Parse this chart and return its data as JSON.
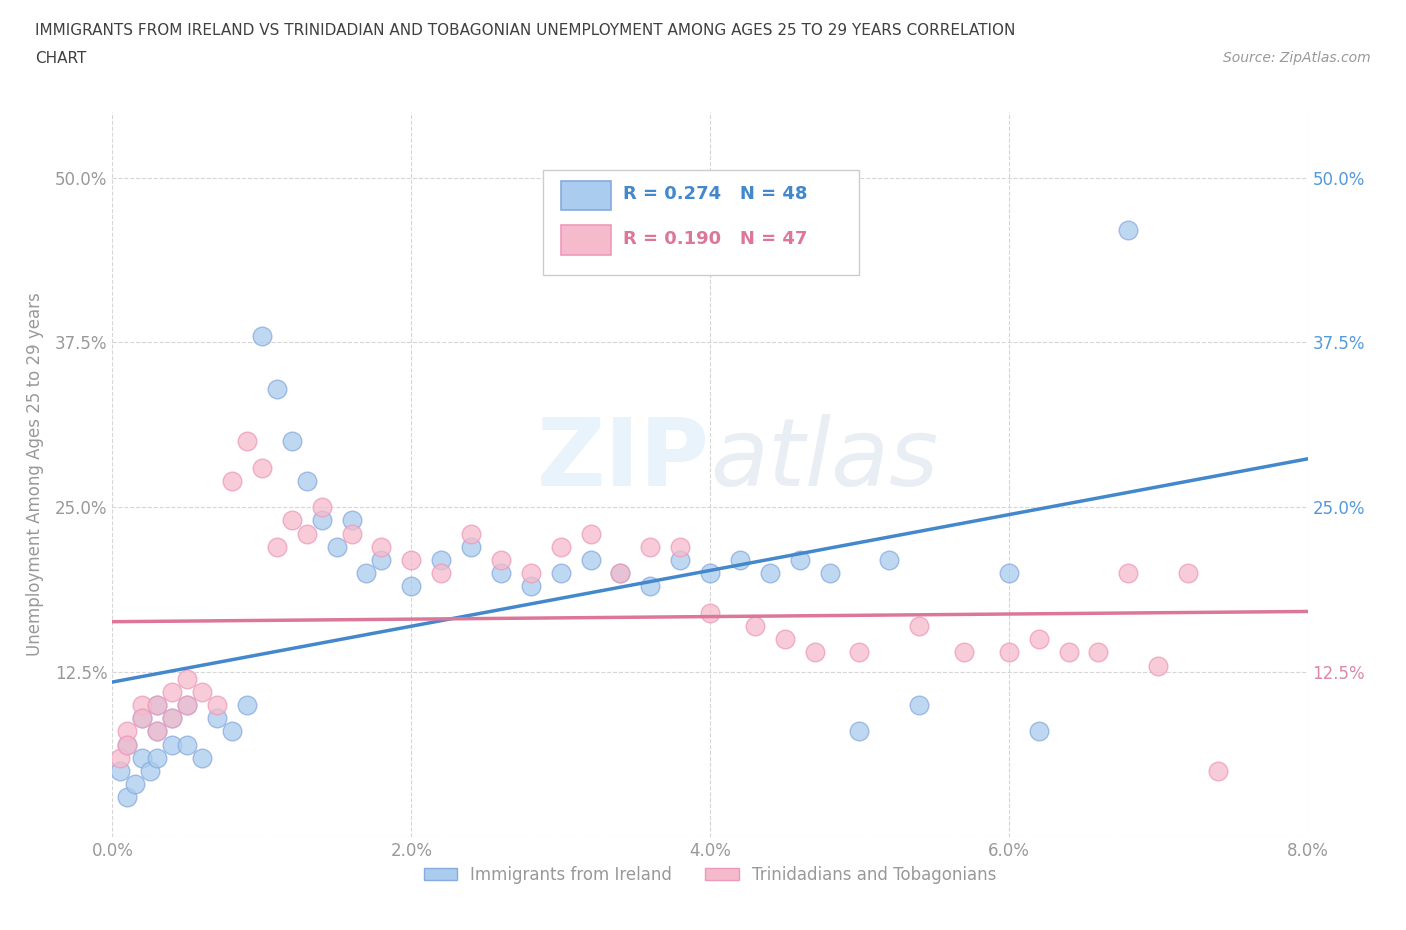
{
  "title_line1": "IMMIGRANTS FROM IRELAND VS TRINIDADIAN AND TOBAGONIAN UNEMPLOYMENT AMONG AGES 25 TO 29 YEARS CORRELATION",
  "title_line2": "CHART",
  "source_text": "Source: ZipAtlas.com",
  "ylabel": "Unemployment Among Ages 25 to 29 years",
  "xlim": [
    0.0,
    0.08
  ],
  "ylim": [
    0.0,
    0.55
  ],
  "xticks": [
    0.0,
    0.02,
    0.04,
    0.06,
    0.08
  ],
  "xticklabels": [
    "0.0%",
    "2.0%",
    "4.0%",
    "6.0%",
    "8.0%"
  ],
  "yticks": [
    0.0,
    0.125,
    0.25,
    0.375,
    0.5
  ],
  "yticklabels": [
    "",
    "12.5%",
    "25.0%",
    "37.5%",
    "50.0%"
  ],
  "right_ytick_colors": [
    "#888888",
    "#dd88aa",
    "#5599dd",
    "#5599dd",
    "#5599dd"
  ],
  "ireland_color": "#aaccee",
  "ireland_edge_color": "#88aadd",
  "trinidadian_color": "#f5bbcc",
  "trinidadian_edge_color": "#ee99bb",
  "ireland_line_color": "#4488cc",
  "trinidadian_line_color": "#dd7799",
  "R_ireland": 0.274,
  "N_ireland": 48,
  "R_trinidadian": 0.19,
  "N_trinidadian": 47,
  "legend_label_ireland": "Immigrants from Ireland",
  "legend_label_trinidadian": "Trinidadians and Tobagonians",
  "ireland_x": [
    0.0005,
    0.001,
    0.001,
    0.0015,
    0.002,
    0.002,
    0.0025,
    0.003,
    0.003,
    0.003,
    0.004,
    0.004,
    0.005,
    0.005,
    0.006,
    0.007,
    0.008,
    0.009,
    0.01,
    0.011,
    0.012,
    0.013,
    0.014,
    0.015,
    0.016,
    0.017,
    0.018,
    0.02,
    0.022,
    0.024,
    0.026,
    0.028,
    0.03,
    0.032,
    0.034,
    0.036,
    0.038,
    0.04,
    0.042,
    0.044,
    0.046,
    0.048,
    0.05,
    0.052,
    0.054,
    0.06,
    0.062,
    0.068
  ],
  "ireland_y": [
    0.05,
    0.03,
    0.07,
    0.04,
    0.06,
    0.09,
    0.05,
    0.06,
    0.08,
    0.1,
    0.07,
    0.09,
    0.07,
    0.1,
    0.06,
    0.09,
    0.08,
    0.1,
    0.38,
    0.34,
    0.3,
    0.27,
    0.24,
    0.22,
    0.24,
    0.2,
    0.21,
    0.19,
    0.21,
    0.22,
    0.2,
    0.19,
    0.2,
    0.21,
    0.2,
    0.19,
    0.21,
    0.2,
    0.21,
    0.2,
    0.21,
    0.2,
    0.08,
    0.21,
    0.1,
    0.2,
    0.08,
    0.46
  ],
  "trinidadian_x": [
    0.0005,
    0.001,
    0.001,
    0.002,
    0.002,
    0.003,
    0.003,
    0.004,
    0.004,
    0.005,
    0.005,
    0.006,
    0.007,
    0.008,
    0.009,
    0.01,
    0.011,
    0.012,
    0.013,
    0.014,
    0.016,
    0.018,
    0.02,
    0.022,
    0.024,
    0.026,
    0.028,
    0.03,
    0.032,
    0.034,
    0.036,
    0.038,
    0.04,
    0.043,
    0.045,
    0.047,
    0.05,
    0.054,
    0.057,
    0.06,
    0.062,
    0.064,
    0.066,
    0.068,
    0.07,
    0.072,
    0.074
  ],
  "trinidadian_y": [
    0.06,
    0.08,
    0.07,
    0.1,
    0.09,
    0.08,
    0.1,
    0.09,
    0.11,
    0.1,
    0.12,
    0.11,
    0.1,
    0.27,
    0.3,
    0.28,
    0.22,
    0.24,
    0.23,
    0.25,
    0.23,
    0.22,
    0.21,
    0.2,
    0.23,
    0.21,
    0.2,
    0.22,
    0.23,
    0.2,
    0.22,
    0.22,
    0.17,
    0.16,
    0.15,
    0.14,
    0.14,
    0.16,
    0.14,
    0.14,
    0.15,
    0.14,
    0.14,
    0.2,
    0.13,
    0.2,
    0.05
  ],
  "background_color": "#ffffff",
  "grid_color": "#cccccc",
  "title_color": "#404040",
  "tick_color": "#999999",
  "ireland_R_color": "#4488cc",
  "trinidadian_R_color": "#dd7799"
}
